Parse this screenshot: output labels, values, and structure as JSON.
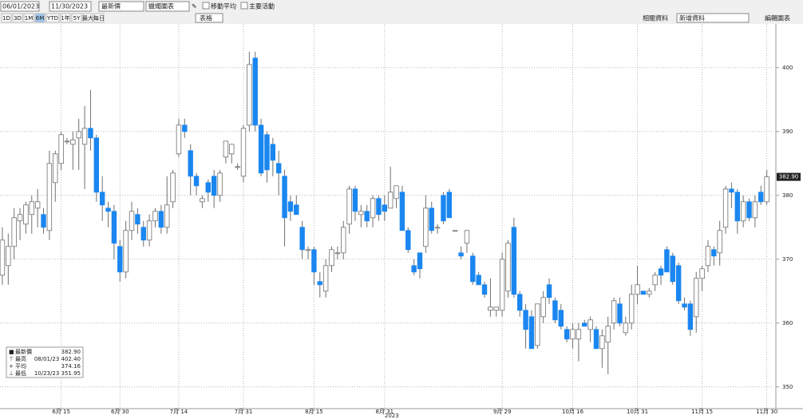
{
  "toolbar": {
    "start_date": "06/01/2023",
    "end_date": "11/30/2023",
    "field": "最新價",
    "chart_style": "蠟燭圖表",
    "edit_icon": "✎",
    "options": [
      "移動平均",
      "主要活動"
    ],
    "periods": [
      "1D",
      "3D",
      "1M",
      "6M",
      "YTD",
      "1年",
      "5Y",
      "最大",
      "每日"
    ],
    "active_period": "6M",
    "table": "表格",
    "related": "相關資料",
    "add_data": "新增資料",
    "edit_chart": "編輯圖表"
  },
  "chart_data": {
    "type": "candlestick",
    "year_label": "2023",
    "up_color": "#ffffff",
    "up_edge": "#707070",
    "down_color": "#1a86f0",
    "wick_color": "#707070",
    "open": [
      367.5,
      369,
      372,
      376,
      375.5,
      377,
      378,
      377,
      374.5,
      382,
      385,
      388.5,
      388,
      389,
      388,
      390.5,
      389,
      380.5,
      378,
      377.5,
      372,
      368,
      374.5,
      377,
      375,
      373,
      376,
      377.5,
      375,
      379,
      386.5,
      391,
      387,
      383,
      379,
      382,
      383,
      380,
      386,
      386.5,
      384.5,
      383,
      391,
      401.5,
      391,
      389.5,
      388,
      385,
      383,
      379,
      378.5,
      375,
      371.5,
      371.5,
      366.5,
      365,
      369,
      371,
      371,
      375.5,
      381,
      377,
      377.5,
      376.5,
      379.5,
      378.5,
      378,
      379.5,
      380.5,
      374.5,
      369,
      371,
      372,
      378,
      375,
      380,
      380.5,
      374.5,
      371,
      372.5,
      370.5,
      367.5,
      366,
      362,
      362,
      362,
      365,
      375,
      364.5,
      362,
      361,
      356.5,
      361,
      366,
      363.5,
      362,
      359,
      357.5,
      357.5,
      360,
      359,
      359,
      356,
      357,
      360,
      363,
      358.5,
      360,
      364.5,
      365,
      364.5,
      366,
      368.5,
      371.5,
      370.5,
      369,
      363,
      363,
      361,
      367,
      369,
      371.5,
      371,
      375,
      381,
      380.5,
      376,
      379,
      376.5,
      380.5,
      379
    ],
    "high": [
      375,
      374,
      378,
      378,
      379,
      380,
      381,
      378,
      387,
      387,
      390,
      389,
      390,
      392,
      394,
      396.5,
      389.5,
      383,
      379,
      378.5,
      373,
      376,
      379,
      378,
      376,
      377,
      378,
      378.5,
      383,
      384,
      392,
      392,
      388,
      383.5,
      380,
      382.5,
      384,
      384,
      388,
      388,
      385,
      391,
      402.5,
      402.5,
      392,
      390,
      389,
      387,
      384,
      380,
      380,
      376,
      372,
      372,
      368,
      370,
      372,
      372,
      376,
      381.5,
      381.5,
      378.5,
      378.5,
      380,
      380,
      380,
      384.5,
      381,
      381.5,
      375,
      370,
      371,
      380,
      379,
      375.5,
      380.5,
      381,
      374.5,
      372,
      374.5,
      371,
      368,
      366.5,
      367,
      362.5,
      371,
      373,
      376.5,
      365,
      363,
      362,
      363,
      365,
      367,
      364,
      363,
      359.5,
      360,
      360,
      360.5,
      361,
      359.5,
      359,
      361,
      364,
      364,
      361,
      366,
      369,
      365,
      365.5,
      368,
      369,
      372,
      371,
      369.5,
      364,
      363.5,
      368,
      369,
      373,
      372,
      376,
      381.5,
      382,
      381,
      380,
      379.5,
      380,
      381.5,
      384
    ],
    "low": [
      366,
      366,
      370,
      373,
      374,
      374,
      375,
      374,
      373,
      379,
      384,
      388,
      384,
      384,
      381,
      387,
      379,
      376,
      375,
      370,
      366.5,
      367,
      373,
      374,
      372,
      372,
      375,
      374,
      374,
      378,
      386,
      389,
      380,
      380,
      378,
      379,
      378,
      379,
      385,
      385,
      384,
      382,
      390,
      390,
      383,
      382,
      383,
      380,
      372,
      376,
      377,
      370,
      370,
      366,
      364,
      364,
      368,
      370,
      370,
      374,
      376,
      375,
      375,
      375,
      376,
      376,
      378,
      378,
      374.5,
      371,
      367.5,
      367,
      371,
      374,
      374,
      375.5,
      376.5,
      374.5,
      370,
      371,
      366,
      366,
      364,
      361,
      361,
      361,
      364,
      364,
      361,
      356,
      356,
      356,
      360,
      363,
      360,
      359,
      357,
      356,
      354,
      359.5,
      357,
      356,
      353,
      352,
      359,
      359.5,
      358,
      359,
      363,
      364.5,
      364,
      365,
      366,
      368,
      366,
      363,
      362,
      358,
      358.5,
      365,
      368,
      369,
      369,
      374,
      378,
      374,
      375,
      376,
      375,
      378.5,
      378.5
    ],
    "close": [
      373,
      372,
      376.5,
      377,
      378.5,
      379,
      379,
      375,
      385,
      386.5,
      389.5,
      388.5,
      388.7,
      390,
      390.5,
      389,
      380.5,
      378.5,
      377.5,
      372.5,
      368,
      374.5,
      377.5,
      375.5,
      373,
      376,
      377.5,
      375,
      378.5,
      383.5,
      391,
      390,
      383,
      381.5,
      379.5,
      380.5,
      380,
      383.5,
      388.5,
      388,
      384.5,
      390.5,
      400.5,
      391,
      383.5,
      384,
      385.5,
      383.5,
      376.5,
      377.5,
      377,
      371.5,
      371.5,
      368,
      366,
      369,
      371.5,
      371,
      375,
      381,
      377.5,
      377.5,
      376,
      379.5,
      377,
      377.5,
      380.5,
      381.5,
      374.5,
      371.5,
      368,
      368.5,
      378,
      374.5,
      375,
      376,
      376.5,
      374.5,
      370.5,
      374.5,
      366.5,
      366,
      364.5,
      362.5,
      362.5,
      370,
      372.5,
      364.5,
      362,
      359,
      356,
      363,
      364,
      364,
      360.5,
      359.5,
      357.5,
      359,
      359,
      359.5,
      360.5,
      356,
      358,
      359.5,
      363.5,
      360,
      360,
      364.5,
      366,
      364.5,
      365,
      367.5,
      367.5,
      368,
      366.5,
      363.5,
      362.5,
      359,
      367,
      368.5,
      372,
      370.5,
      374.5,
      381,
      380.5,
      376,
      379,
      376.5,
      379,
      379,
      382.9
    ],
    "xlim": [
      -0.4,
      131
    ],
    "ylim": [
      347.1,
      408.1
    ],
    "xticks": [
      {
        "value": 10,
        "label": "6月 15"
      },
      {
        "value": 20,
        "label": "6月 30"
      },
      {
        "value": 30,
        "label": "7月 14"
      },
      {
        "value": 41,
        "label": "7月 31"
      },
      {
        "value": 53,
        "label": "8月 15"
      },
      {
        "value": 65,
        "label": "8月 31"
      },
      {
        "value": 85,
        "label": "9月 29"
      },
      {
        "value": 97,
        "label": "10月 16"
      },
      {
        "value": 108,
        "label": "10月 31"
      },
      {
        "value": 119,
        "label": "11月 15"
      },
      {
        "value": 130,
        "label": "11月 30"
      }
    ],
    "yticks": [
      350,
      360,
      370,
      380,
      390,
      400
    ],
    "grid": true,
    "price_tag": {
      "value": 382.9,
      "label": "382.90"
    },
    "legend": [
      {
        "name": "最新價",
        "text": "382.90"
      },
      {
        "name": "最高",
        "text": "08/01/23 402.40"
      },
      {
        "name": "平均",
        "text": "374.16"
      },
      {
        "name": "最低",
        "text": "10/23/23 351.95"
      }
    ]
  }
}
